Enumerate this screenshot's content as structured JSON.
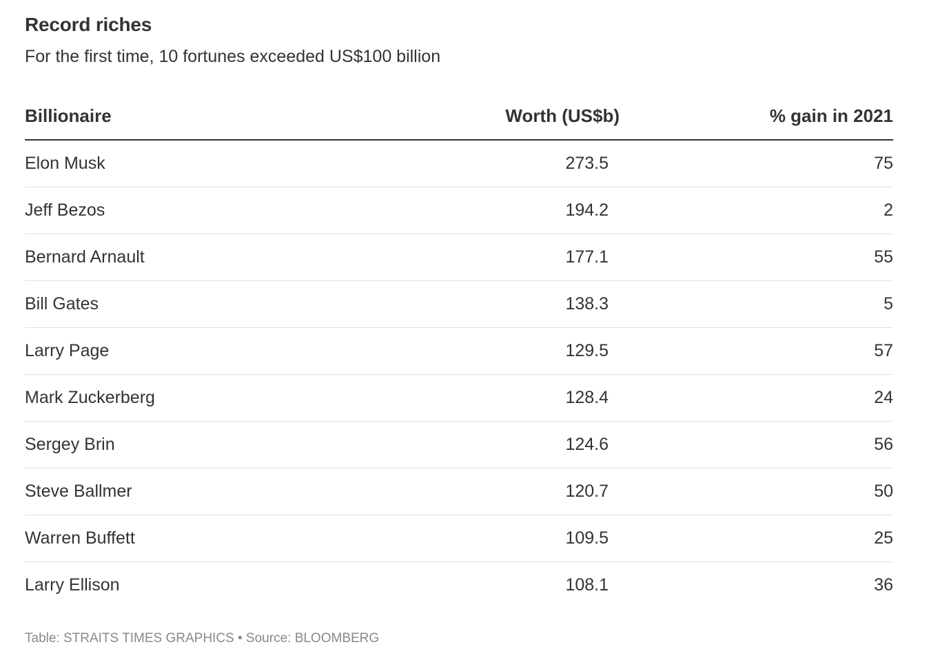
{
  "chart_data": {
    "type": "table",
    "title": "Record riches",
    "subtitle": "For the first time, 10 fortunes exceeded US$100 billion",
    "columns": [
      "Billionaire",
      "Worth (US$b)",
      "% gain in 2021"
    ],
    "rows": [
      {
        "name": "Elon Musk",
        "worth": "273.5",
        "gain": "75"
      },
      {
        "name": "Jeff Bezos",
        "worth": "194.2",
        "gain": "2"
      },
      {
        "name": "Bernard Arnault",
        "worth": "177.1",
        "gain": "55"
      },
      {
        "name": "Bill Gates",
        "worth": "138.3",
        "gain": "5"
      },
      {
        "name": "Larry Page",
        "worth": "129.5",
        "gain": "57"
      },
      {
        "name": "Mark Zuckerberg",
        "worth": "128.4",
        "gain": "24"
      },
      {
        "name": "Sergey Brin",
        "worth": "124.6",
        "gain": "56"
      },
      {
        "name": "Steve Ballmer",
        "worth": "120.7",
        "gain": "50"
      },
      {
        "name": "Warren Buffett",
        "worth": "109.5",
        "gain": "25"
      },
      {
        "name": "Larry Ellison",
        "worth": "108.1",
        "gain": "36"
      }
    ],
    "footer": "Table: STRAITS TIMES GRAPHICS • Source: BLOOMBERG"
  }
}
